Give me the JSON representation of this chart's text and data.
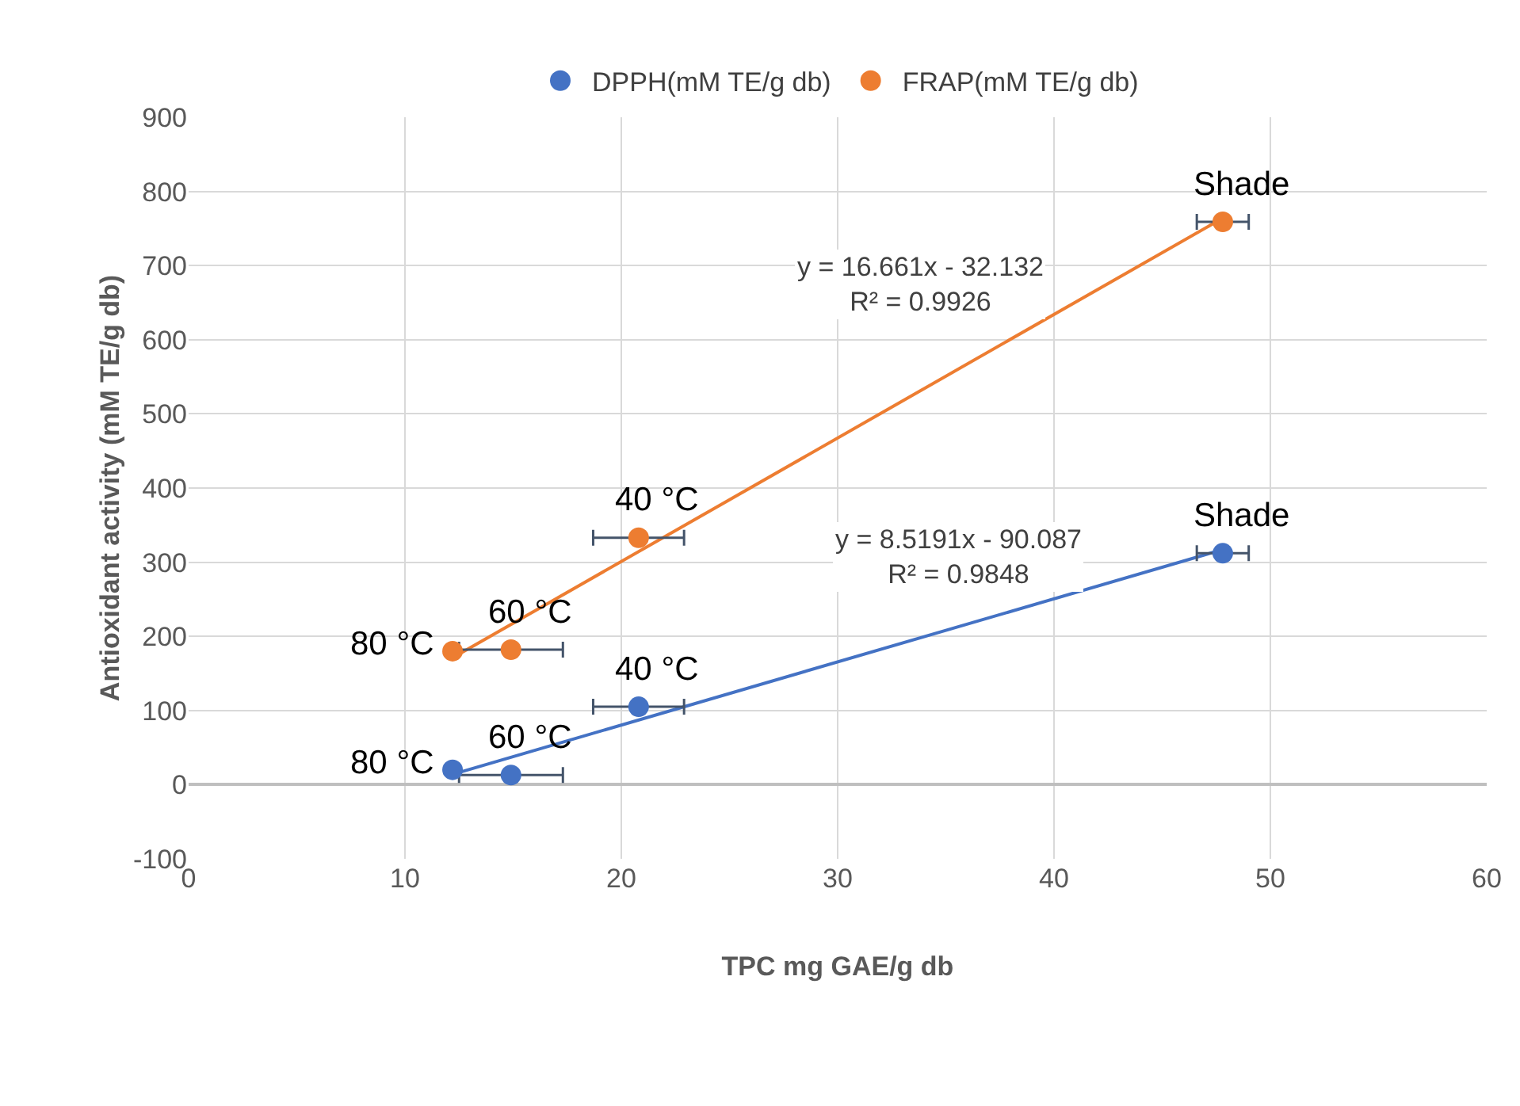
{
  "chart_data": {
    "type": "scatter",
    "xlabel": "TPC mg GAE/g db",
    "ylabel": "Antioxidant activity (mM TE/g db)",
    "xlim": [
      0,
      60
    ],
    "xticks": [
      0,
      10,
      20,
      30,
      40,
      50,
      60
    ],
    "ylim": [
      -100,
      900
    ],
    "yticks": [
      -100,
      0,
      100,
      200,
      300,
      400,
      500,
      600,
      700,
      800,
      900
    ],
    "grid": true,
    "legend": "top",
    "marker": "circle",
    "series": [
      {
        "name": "DPPH(mM TE/g db)",
        "color": "#4472c4",
        "x": [
          12.2,
          14.9,
          20.8,
          47.8
        ],
        "values": [
          20,
          13,
          105,
          312
        ],
        "xerrors": [
          null,
          2.4,
          2.1,
          1.2
        ]
      },
      {
        "name": "FRAP(mM TE/g db)",
        "color": "#ed7d31",
        "x": [
          12.2,
          14.9,
          20.8,
          47.8
        ],
        "values": [
          180,
          182,
          333,
          759
        ],
        "xerrors": [
          null,
          2.4,
          2.1,
          1.2
        ]
      },
      {
        "type": "line",
        "color": "#4472c4",
        "x": [
          12.2,
          47.8
        ],
        "values": [
          14,
          317
        ],
        "line_style": "solid",
        "marker": "none"
      },
      {
        "type": "line",
        "color": "#ed7d31",
        "x": [
          12.2,
          47.8
        ],
        "values": [
          171,
          764
        ],
        "line_style": "solid",
        "marker": "none"
      }
    ],
    "annotations": [
      {
        "text": "80 °C",
        "x": 12.2,
        "y": 20
      },
      {
        "text": "60 °C",
        "x": 14.9,
        "y": 13
      },
      {
        "text": "40 °C",
        "x": 20.8,
        "y": 105
      },
      {
        "text": "Shade",
        "x": 47.8,
        "y": 312
      },
      {
        "text": "80 °C",
        "x": 12.2,
        "y": 180
      },
      {
        "text": "60 °C",
        "x": 14.9,
        "y": 182
      },
      {
        "text": "40 °C",
        "x": 20.8,
        "y": 333
      },
      {
        "text": "Shade",
        "x": 47.8,
        "y": 759
      },
      "y = 8.5191x - 90.087\nR² = 0.9848",
      "y = 16.661x - 32.132\nR² = 0.9926"
    ]
  }
}
